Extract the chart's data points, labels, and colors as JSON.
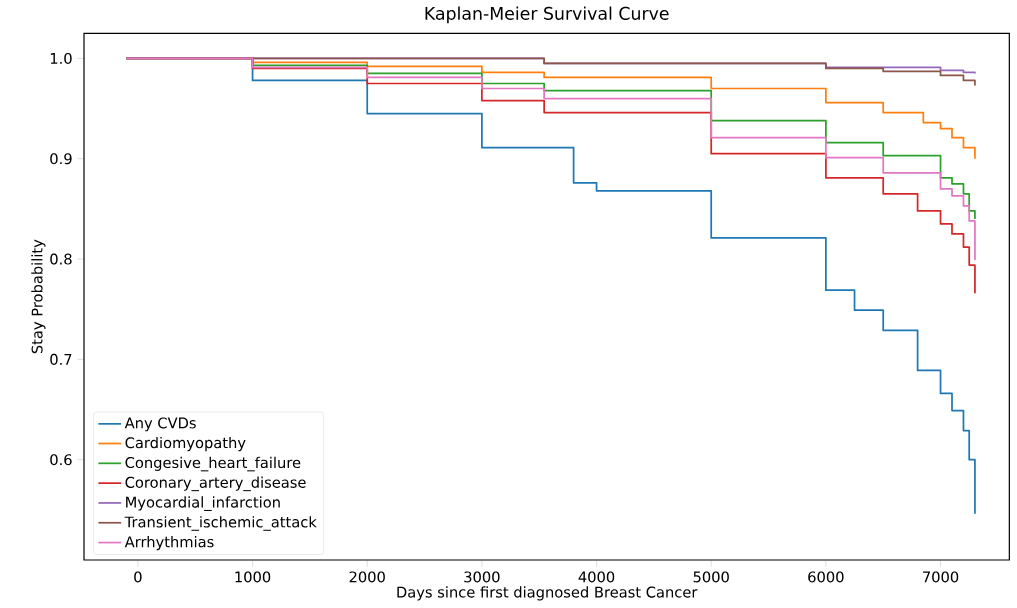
{
  "chart_data": {
    "type": "step",
    "title": "Kaplan-Meier Survival Curve",
    "xlabel": "Days since first diagnosed Breast Cancer",
    "ylabel": "Stay Probability",
    "xlim": [
      -470,
      7600
    ],
    "ylim": [
      0.5,
      1.025
    ],
    "xticks": [
      0,
      1000,
      2000,
      3000,
      4000,
      5000,
      6000,
      7000
    ],
    "yticks": [
      0.6,
      0.7,
      0.8,
      0.9,
      {
        "value": 1.0,
        "label": "1.0"
      }
    ],
    "grid": false,
    "legend": "bottom left",
    "line_style": "solid",
    "marker": "none",
    "series": [
      {
        "name": "Any CVDs",
        "color": "#1f77b4",
        "x": [
          -100,
          1000,
          2000,
          3000,
          3800,
          4000,
          5000,
          6000,
          6250,
          6500,
          6800,
          7000,
          7100,
          7200,
          7250,
          7300
        ],
        "values": [
          1.0,
          0.978,
          0.945,
          0.911,
          0.876,
          0.868,
          0.821,
          0.769,
          0.749,
          0.729,
          0.689,
          0.666,
          0.649,
          0.629,
          0.6,
          0.546
        ]
      },
      {
        "name": "Cardiomyopathy",
        "color": "#ff7f0e",
        "x": [
          -100,
          1000,
          2000,
          3000,
          3543,
          5000,
          6000,
          6500,
          6850,
          7000,
          7100,
          7200,
          7300
        ],
        "values": [
          1.0,
          0.996,
          0.992,
          0.986,
          0.981,
          0.97,
          0.956,
          0.946,
          0.936,
          0.93,
          0.921,
          0.911,
          0.9
        ]
      },
      {
        "name": "Congesive_heart_failure",
        "color": "#2ca02c",
        "x": [
          -100,
          1000,
          2000,
          3000,
          3543,
          5000,
          6000,
          6500,
          7000,
          7100,
          7200,
          7250,
          7300
        ],
        "values": [
          1.0,
          0.993,
          0.985,
          0.975,
          0.968,
          0.938,
          0.916,
          0.903,
          0.881,
          0.875,
          0.865,
          0.848,
          0.84
        ]
      },
      {
        "name": "Coronary_artery_disease",
        "color": "#d62728",
        "x": [
          -100,
          1000,
          2000,
          3000,
          3543,
          5000,
          6000,
          6500,
          6800,
          7000,
          7100,
          7200,
          7250,
          7300
        ],
        "values": [
          1.0,
          0.99,
          0.975,
          0.958,
          0.946,
          0.905,
          0.881,
          0.865,
          0.848,
          0.835,
          0.825,
          0.812,
          0.794,
          0.766
        ]
      },
      {
        "name": "Myocardial_infarction",
        "color": "#9467bd",
        "x": [
          -100,
          3543,
          6000,
          7000,
          7200,
          7300
        ],
        "values": [
          1.0,
          0.995,
          0.991,
          0.988,
          0.986,
          0.985
        ]
      },
      {
        "name": "Transient_ischemic_attack",
        "color": "#8c564b",
        "x": [
          -100,
          3543,
          6000,
          6500,
          7000,
          7200,
          7300
        ],
        "values": [
          1.0,
          0.995,
          0.99,
          0.987,
          0.983,
          0.978,
          0.973
        ]
      },
      {
        "name": "Arrhythmias",
        "color": "#e377c2",
        "x": [
          -100,
          1000,
          2000,
          3000,
          3543,
          5000,
          6000,
          6500,
          7000,
          7100,
          7200,
          7250,
          7300
        ],
        "values": [
          1.0,
          0.991,
          0.981,
          0.97,
          0.96,
          0.921,
          0.901,
          0.886,
          0.87,
          0.863,
          0.853,
          0.838,
          0.799
        ]
      }
    ]
  }
}
